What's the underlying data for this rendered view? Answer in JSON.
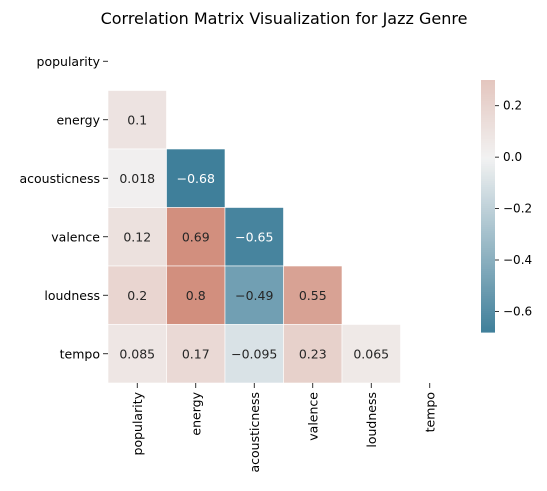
{
  "chart_data": {
    "type": "heatmap",
    "title": "Correlation Matrix Visualization for Jazz Genre",
    "xlabel": "",
    "ylabel": "",
    "variables": [
      "popularity",
      "energy",
      "acousticness",
      "valence",
      "loudness",
      "tempo"
    ],
    "mask": "upper-triangle-including-diagonal",
    "matrix": [
      [
        null,
        null,
        null,
        null,
        null,
        null
      ],
      [
        0.1,
        null,
        null,
        null,
        null,
        null
      ],
      [
        0.018,
        -0.68,
        null,
        null,
        null,
        null
      ],
      [
        0.12,
        0.69,
        -0.65,
        null,
        null,
        null
      ],
      [
        0.2,
        0.8,
        -0.49,
        0.55,
        null,
        null
      ],
      [
        0.085,
        0.17,
        -0.095,
        0.23,
        0.065,
        null
      ]
    ],
    "colorbar": {
      "range": [
        -0.68,
        0.3
      ],
      "ticks": [
        0.2,
        0.0,
        -0.2,
        -0.4,
        -0.6
      ],
      "tick_labels": [
        "0.2",
        "0.0",
        "−0.2",
        "−0.4",
        "−0.6"
      ],
      "colormap": "diverging blue-white-red (seaborn 230/20)"
    },
    "colors": {
      "negative_end": "#3f7f9a",
      "center": "#f2f2f2",
      "positive_end": "#d28f7e",
      "grid_lines": "#ffffff"
    },
    "grid": false
  }
}
